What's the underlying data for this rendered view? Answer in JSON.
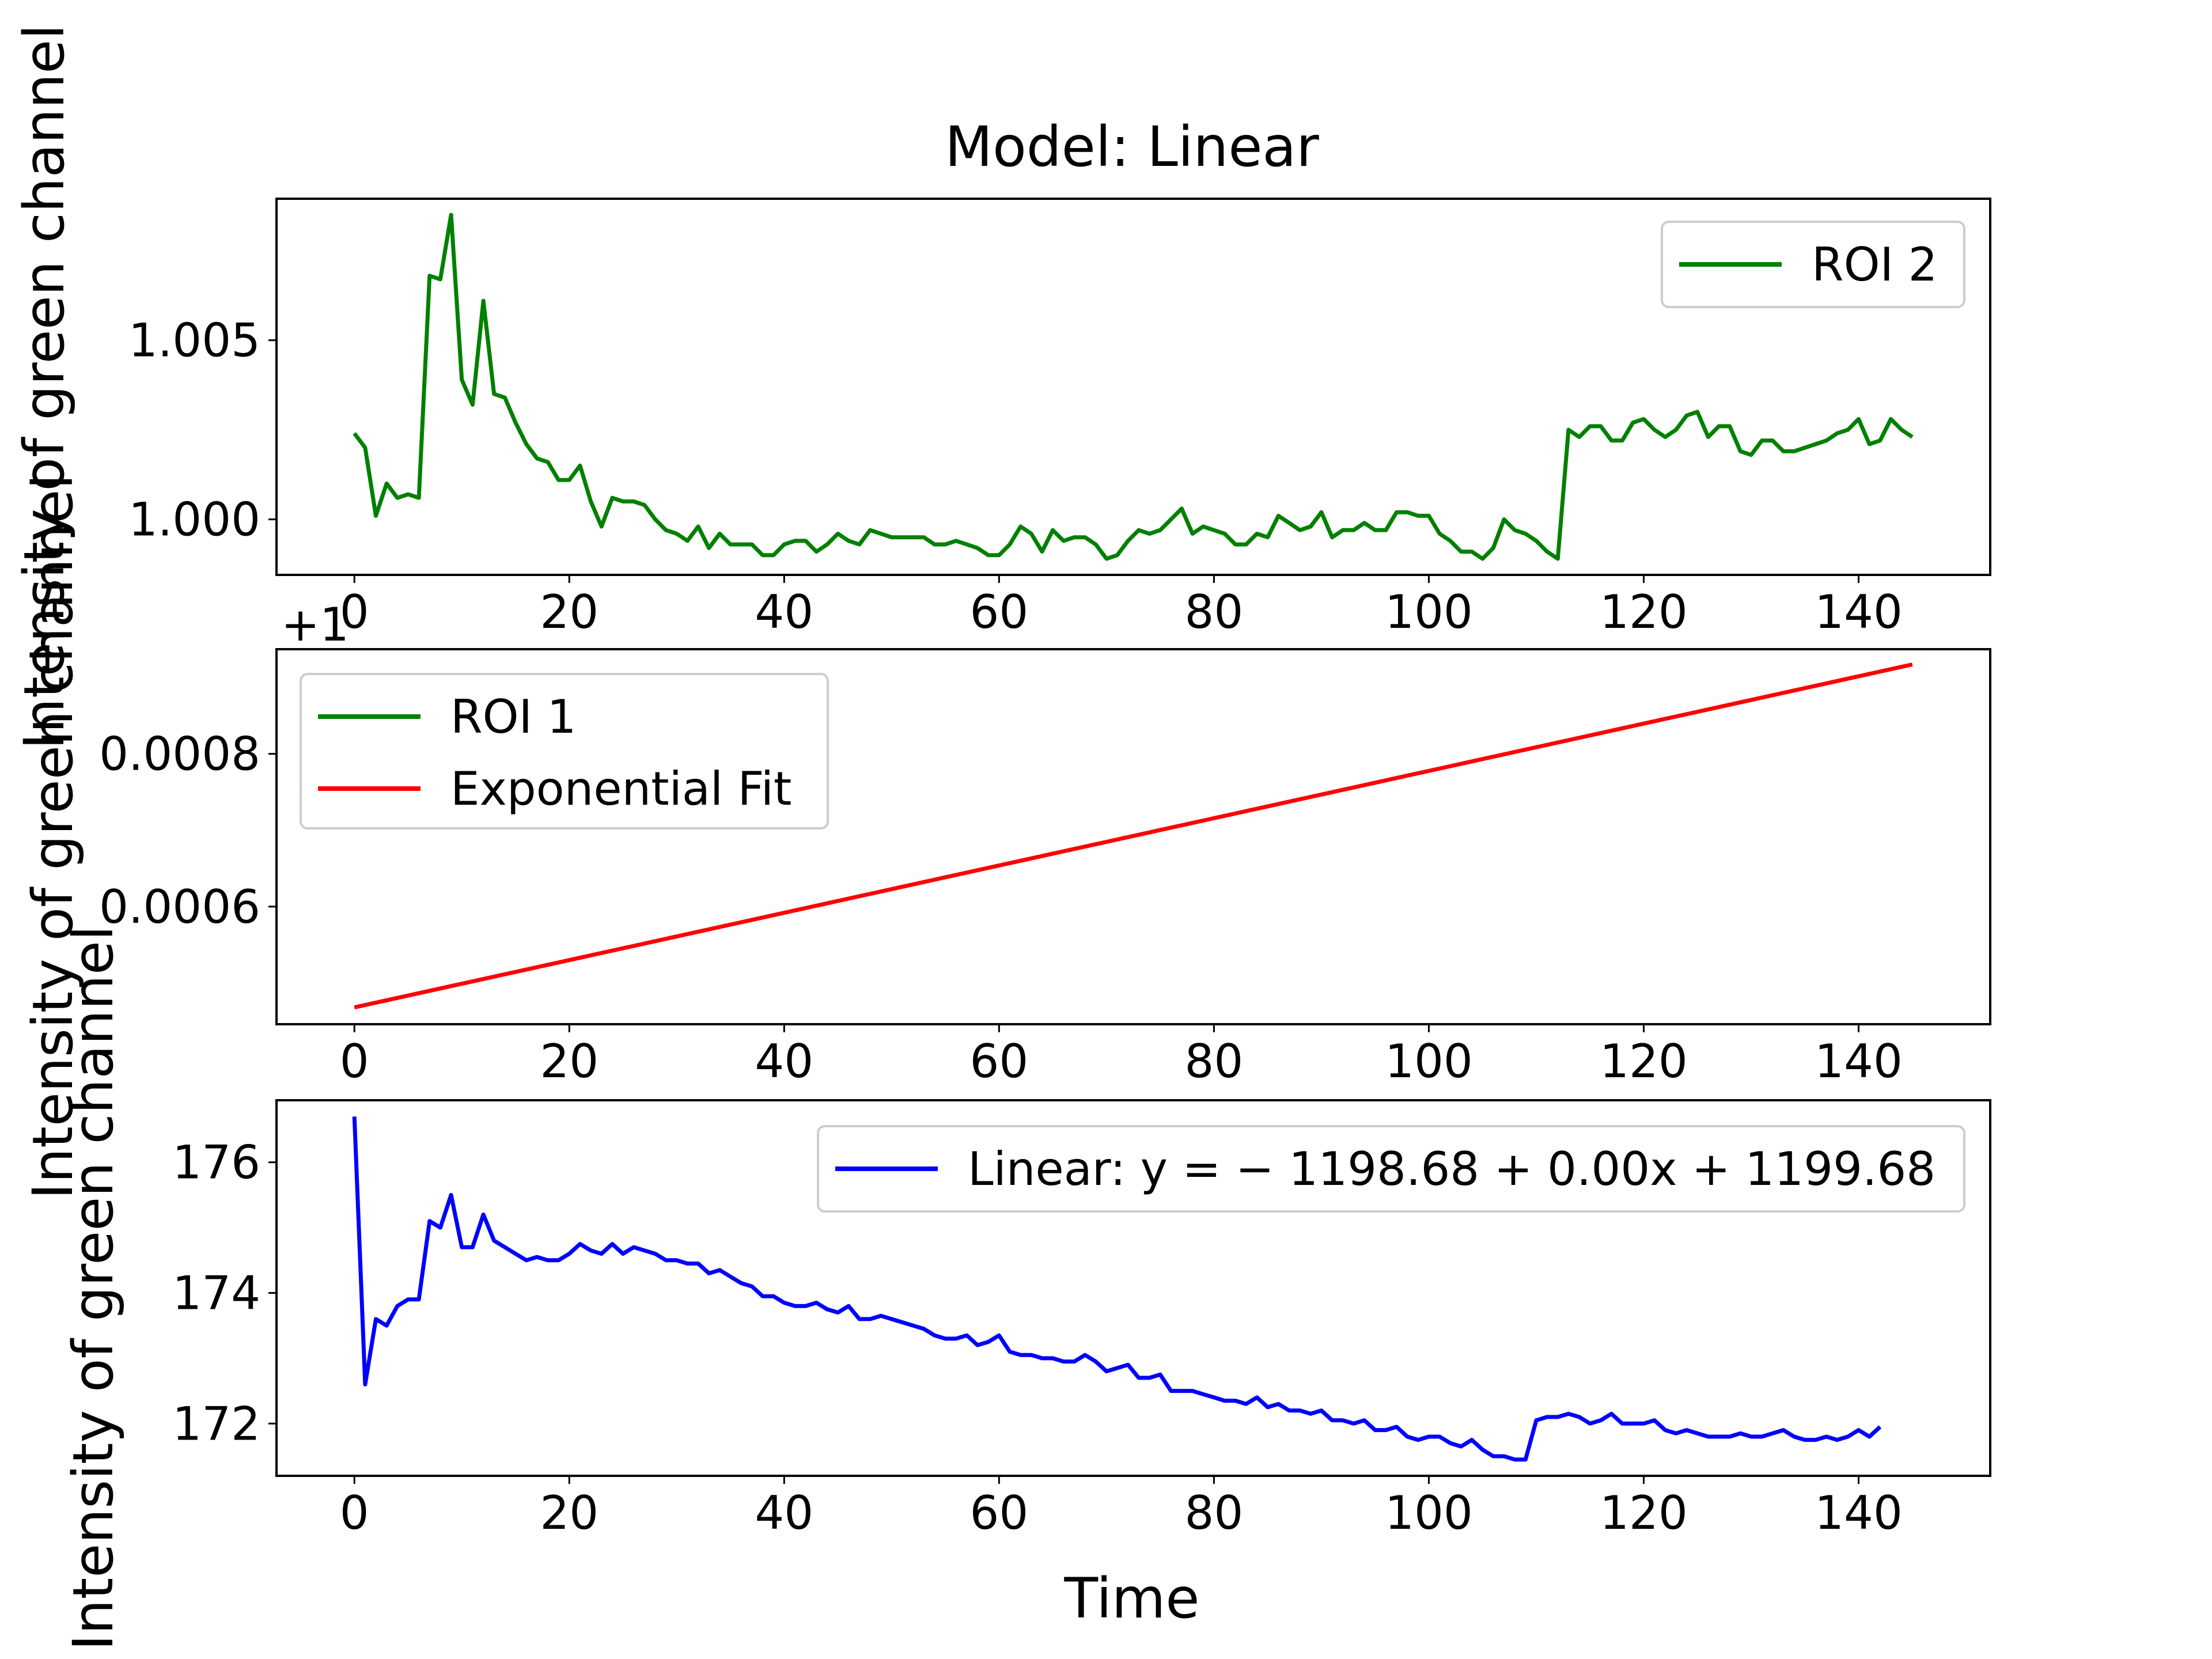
{
  "figure": {
    "title": "Model: Linear",
    "xlabel": "Time"
  },
  "chart_data": [
    {
      "type": "line",
      "ylabel": "Intensity of green channel",
      "xlim": [
        -7.25,
        152.25
      ],
      "ylim": [
        0.99845,
        1.00895
      ],
      "x_ticks": [
        0,
        20,
        40,
        60,
        80,
        100,
        120,
        140
      ],
      "y_ticks": [
        1.0,
        1.005
      ],
      "y_tick_labels": [
        "1.000",
        "1.005"
      ],
      "legend": {
        "position": "upper right"
      },
      "series": [
        {
          "name": "ROI 2",
          "color": "#008000",
          "x_start": 0,
          "x_step": 1,
          "values": [
            1.0024,
            1.002,
            1.0001,
            1.001,
            1.0006,
            1.0007,
            1.0006,
            1.0068,
            1.0067,
            1.0085,
            1.0039,
            1.0032,
            1.0061,
            1.0035,
            1.0034,
            1.0027,
            1.0021,
            1.0017,
            1.0016,
            1.0011,
            1.0011,
            1.0015,
            1.0005,
            0.9998,
            1.0006,
            1.0005,
            1.0005,
            1.0004,
            1.0,
            0.9997,
            0.9996,
            0.9994,
            0.9998,
            0.9992,
            0.9996,
            0.9993,
            0.9993,
            0.9993,
            0.999,
            0.999,
            0.9993,
            0.9994,
            0.9994,
            0.9991,
            0.9993,
            0.9996,
            0.9994,
            0.9993,
            0.9997,
            0.9996,
            0.9995,
            0.9995,
            0.9995,
            0.9995,
            0.9993,
            0.9993,
            0.9994,
            0.9993,
            0.9992,
            0.999,
            0.999,
            0.9993,
            0.9998,
            0.9996,
            0.9991,
            0.9997,
            0.9994,
            0.9995,
            0.9995,
            0.9993,
            0.9989,
            0.999,
            0.9994,
            0.9997,
            0.9996,
            0.9997,
            1.0,
            1.0003,
            0.9996,
            0.9998,
            0.9997,
            0.9996,
            0.9993,
            0.9993,
            0.9996,
            0.9995,
            1.0001,
            0.9999,
            0.9997,
            0.9998,
            1.0002,
            0.9995,
            0.9997,
            0.9997,
            0.9999,
            0.9997,
            0.9997,
            1.0002,
            1.0002,
            1.0001,
            1.0001,
            0.9996,
            0.9994,
            0.9991,
            0.9991,
            0.9989,
            0.9992,
            1.0,
            0.9997,
            0.9996,
            0.9994,
            0.9991,
            0.9989,
            1.0025,
            1.0023,
            1.0026,
            1.0026,
            1.0022,
            1.0022,
            1.0027,
            1.0028,
            1.0025,
            1.0023,
            1.0025,
            1.0029,
            1.003,
            1.0023,
            1.0026,
            1.0026,
            1.0019,
            1.0018,
            1.0022,
            1.0022,
            1.0019,
            1.0019,
            1.002,
            1.0021,
            1.0022,
            1.0024,
            1.0025,
            1.0028,
            1.0021,
            1.0022,
            1.0028,
            1.0025,
            1.0023
          ]
        }
      ]
    },
    {
      "type": "line",
      "ylabel": "Intensity of green channel",
      "offset_text": "+1",
      "xlim": [
        -7.25,
        152.25
      ],
      "ylim": [
        0.000446,
        0.000937
      ],
      "x_ticks": [
        0,
        20,
        40,
        60,
        80,
        100,
        120,
        140
      ],
      "y_ticks": [
        0.0006,
        0.0008
      ],
      "y_tick_labels": [
        "0.0006",
        "0.0008"
      ],
      "legend": {
        "position": "upper left"
      },
      "series": [
        {
          "name": "ROI 1",
          "color": "#008000",
          "values": []
        },
        {
          "name": "Exponential Fit",
          "color": "#ff0000",
          "x": [
            0,
            145
          ],
          "y": [
            0.000468,
            0.000917
          ]
        }
      ]
    },
    {
      "type": "line",
      "ylabel": "Intensity of green channel",
      "xlim": [
        -7.25,
        152.25
      ],
      "ylim": [
        171.2,
        176.95
      ],
      "x_ticks": [
        0,
        20,
        40,
        60,
        80,
        100,
        120,
        140
      ],
      "y_ticks": [
        172,
        174,
        176
      ],
      "y_tick_labels": [
        "172",
        "174",
        "176"
      ],
      "legend": {
        "position": "upper right"
      },
      "series": [
        {
          "name": "Linear: y = − 1198.68 + 0.00x + 1199.68",
          "color": "#0000ff",
          "x_start": 0,
          "x_step": 1,
          "values": [
            176.7,
            172.6,
            173.6,
            173.5,
            173.8,
            173.9,
            173.9,
            175.1,
            175.0,
            175.5,
            174.7,
            174.7,
            175.2,
            174.8,
            174.7,
            174.6,
            174.5,
            174.55,
            174.5,
            174.5,
            174.6,
            174.75,
            174.65,
            174.6,
            174.75,
            174.6,
            174.7,
            174.65,
            174.6,
            174.5,
            174.5,
            174.45,
            174.45,
            174.3,
            174.35,
            174.25,
            174.15,
            174.1,
            173.95,
            173.95,
            173.85,
            173.8,
            173.8,
            173.85,
            173.75,
            173.7,
            173.8,
            173.6,
            173.6,
            173.65,
            173.6,
            173.55,
            173.5,
            173.45,
            173.35,
            173.3,
            173.3,
            173.35,
            173.2,
            173.25,
            173.35,
            173.1,
            173.05,
            173.05,
            173.0,
            173.0,
            172.95,
            172.95,
            173.05,
            172.95,
            172.8,
            172.85,
            172.9,
            172.7,
            172.7,
            172.75,
            172.5,
            172.5,
            172.5,
            172.45,
            172.4,
            172.35,
            172.35,
            172.3,
            172.4,
            172.25,
            172.3,
            172.2,
            172.2,
            172.15,
            172.2,
            172.05,
            172.05,
            172.0,
            172.05,
            171.9,
            171.9,
            171.95,
            171.8,
            171.75,
            171.8,
            171.8,
            171.7,
            171.65,
            171.75,
            171.6,
            171.5,
            171.5,
            171.45,
            171.45,
            172.05,
            172.1,
            172.1,
            172.15,
            172.1,
            172.0,
            172.05,
            172.15,
            172.0,
            172.0,
            172.0,
            172.05,
            171.9,
            171.85,
            171.9,
            171.85,
            171.8,
            171.8,
            171.8,
            171.85,
            171.8,
            171.8,
            171.85,
            171.9,
            171.8,
            171.75,
            171.75,
            171.8,
            171.75,
            171.8,
            171.9,
            171.8,
            171.95
          ]
        }
      ]
    }
  ]
}
